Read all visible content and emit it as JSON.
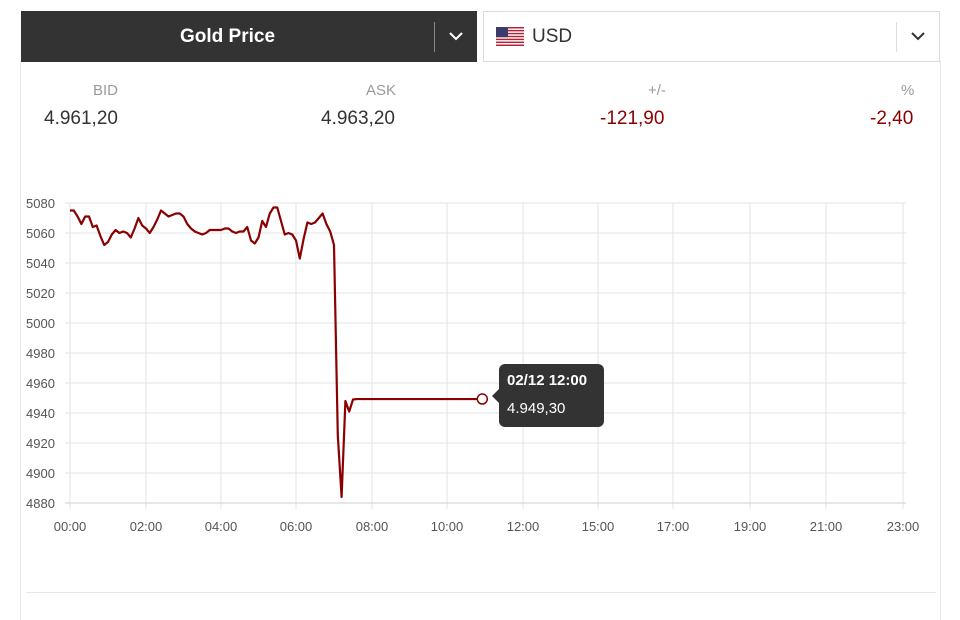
{
  "header": {
    "instrument_label": "Gold Price",
    "currency_label": "USD",
    "icons": {
      "instrument_dropdown": "chevron-down-icon",
      "currency_dropdown": "chevron-down-icon",
      "flag": "us-flag-icon"
    }
  },
  "stats": {
    "bid_label": "BID",
    "bid_value": "4.961,20",
    "ask_label": "ASK",
    "ask_value": "4.963,20",
    "change_label": "+/-",
    "change_value": "-121,90",
    "pct_label": "%",
    "pct_value": "-2,40"
  },
  "colors": {
    "line": "#8b0000",
    "dark": "#333333",
    "negative": "#8b0000"
  },
  "tooltip": {
    "date": "02/12 12:00",
    "value": "4.949,30"
  },
  "chart_data": {
    "type": "line",
    "ylim": [
      4880,
      5080
    ],
    "y_ticks": [
      5080,
      5060,
      5040,
      5020,
      5000,
      4980,
      4960,
      4940,
      4920,
      4900,
      4880
    ],
    "x_tick_labels": [
      "00:00",
      "02:00",
      "04:00",
      "06:00",
      "08:00",
      "10:00",
      "12:00",
      "15:00",
      "17:00",
      "19:00",
      "21:00",
      "23:00"
    ],
    "grid": true,
    "series": [
      {
        "x": [
          0.0,
          0.1,
          0.2,
          0.3,
          0.4,
          0.5,
          0.6,
          0.7,
          0.8,
          0.9,
          1.0,
          1.1,
          1.2,
          1.3,
          1.4,
          1.5,
          1.6,
          1.7,
          1.8,
          1.9,
          2.0,
          2.1,
          2.2,
          2.3,
          2.4,
          2.5,
          2.6,
          2.7,
          2.8,
          2.9,
          3.0,
          3.1,
          3.2,
          3.3,
          3.4,
          3.5,
          3.6,
          3.7,
          3.8,
          3.9,
          4.0,
          4.1,
          4.2,
          4.3,
          4.4,
          4.5,
          4.6,
          4.7,
          4.8,
          4.9,
          5.0,
          5.1,
          5.2,
          5.3,
          5.4,
          5.5,
          5.6,
          5.7,
          5.8,
          5.9,
          6.0,
          6.1,
          6.2,
          6.3,
          6.4,
          6.5,
          6.6,
          6.7,
          6.8,
          6.9,
          7.0,
          7.1,
          7.2,
          7.3,
          7.4,
          7.5,
          7.6,
          7.7,
          7.8,
          7.9,
          8.0,
          8.1,
          8.2,
          8.3,
          8.4,
          8.5,
          8.6,
          8.7,
          8.8,
          8.9,
          9.0,
          9.1,
          9.2,
          9.3,
          9.4,
          9.5,
          9.6,
          9.7,
          9.8,
          9.9,
          10.0,
          10.15,
          10.3,
          10.45,
          10.55,
          10.7,
          10.85,
          11.0
        ],
        "y": [
          5075,
          5075,
          5071,
          5066,
          5071,
          5071,
          5064,
          5065,
          5058,
          5052,
          5054,
          5059,
          5062,
          5060,
          5061,
          5060,
          5057,
          5063,
          5070,
          5065,
          5063,
          5060,
          5064,
          5069,
          5075,
          5073,
          5071,
          5072,
          5073,
          5073,
          5071,
          5066,
          5063,
          5061,
          5060,
          5059,
          5060,
          5062,
          5062,
          5062,
          5062,
          5063,
          5063,
          5061,
          5060,
          5061,
          5061,
          5064,
          5055,
          5053,
          5057,
          5068,
          5064,
          5073,
          5077,
          5077,
          5068,
          5059,
          5060,
          5059,
          5055,
          5043,
          5056,
          5067,
          5066,
          5067,
          5070,
          5073,
          5066,
          5061,
          5052,
          4925,
          4884,
          4948,
          4941,
          4949,
          4949.3,
          4949.3,
          4949.3,
          4949.3,
          4949.3,
          4949.3,
          4949.3,
          4949.3,
          4949.3,
          4949.3,
          4949.3,
          4949.3,
          4949.3,
          4949.3,
          4949.3,
          4949.3,
          4949.3,
          4949.3,
          4949.3,
          4949.3,
          4949.3,
          4949.3,
          4949.3,
          4949.3,
          4949.3,
          4949.3,
          4949.3,
          4949.3,
          4949.3,
          4949.3,
          4949.3,
          4949.3
        ]
      }
    ]
  }
}
